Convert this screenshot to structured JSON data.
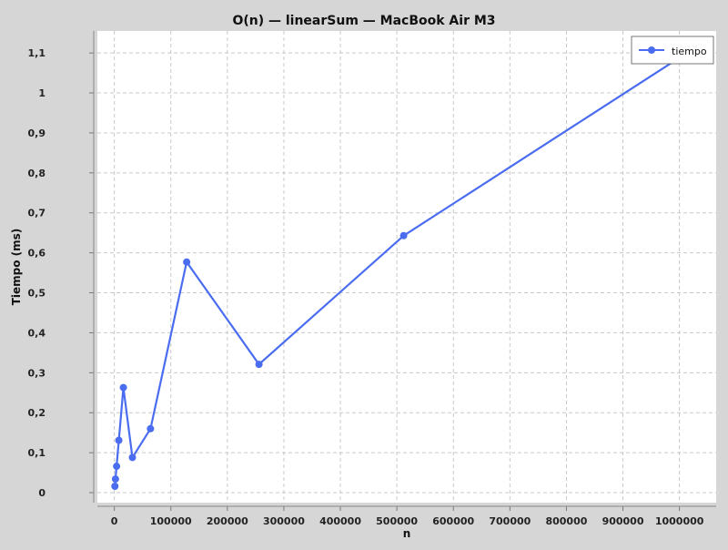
{
  "chart_data": {
    "type": "line",
    "title": "O(n) — linearSum — MacBook Air M3",
    "xlabel": "n",
    "ylabel": "Tiempo (ms)",
    "xlim": [
      -30000,
      1065000
    ],
    "ylim": [
      -0.025,
      1.155
    ],
    "x_ticks": [
      0,
      100000,
      200000,
      300000,
      400000,
      500000,
      600000,
      700000,
      800000,
      900000,
      1000000
    ],
    "y_ticks": [
      0,
      0.1,
      0.2,
      0.3,
      0.4,
      0.5,
      0.6,
      0.7,
      0.8,
      0.9,
      1,
      1.1
    ],
    "x_tick_labels": [
      "0",
      "100000",
      "200000",
      "300000",
      "400000",
      "500000",
      "600000",
      "700000",
      "800000",
      "900000",
      "1000000"
    ],
    "y_tick_labels": [
      "0",
      "0,1",
      "0,2",
      "0,3",
      "0,4",
      "0,5",
      "0,6",
      "0,7",
      "0,8",
      "0,9",
      "1",
      "1,1"
    ],
    "grid": true,
    "legend_position": "top-right",
    "series": [
      {
        "name": "tiempo",
        "color": "#4a6cf0",
        "x": [
          1000,
          2000,
          4000,
          8000,
          16000,
          32000,
          64000,
          128000,
          256000,
          512000,
          1024000
        ],
        "y": [
          0.016,
          0.034,
          0.066,
          0.131,
          0.263,
          0.088,
          0.16,
          0.577,
          0.321,
          0.643,
          1.11
        ]
      }
    ]
  }
}
